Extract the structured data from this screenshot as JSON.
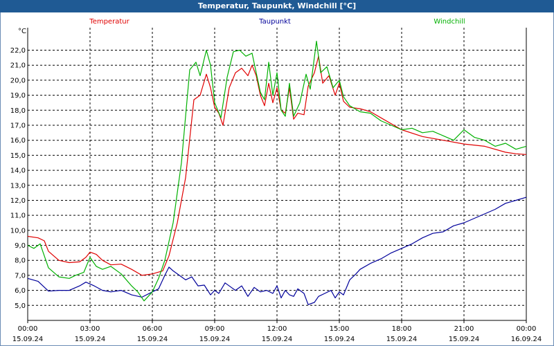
{
  "window": {
    "title": "Temperatur, Taupunkt, Windchill [°C]"
  },
  "colors": {
    "temperatur": "#e00000",
    "taupunkt": "#00009a",
    "windchill": "#00b000",
    "titlebar": "#1f5a94"
  },
  "chart_data": {
    "type": "line",
    "title": "Temperatur, Taupunkt, Windchill [°C]",
    "ylabel": "°C",
    "xlabel": "",
    "ylim": [
      4.0,
      23.5
    ],
    "xlim": [
      0,
      24
    ],
    "grid": true,
    "legend_placement": "top",
    "yticks": [
      "5,0",
      "6,0",
      "7,0",
      "8,0",
      "9,0",
      "10,0",
      "11,0",
      "12,0",
      "13,0",
      "14,0",
      "15,0",
      "16,0",
      "17,0",
      "18,0",
      "19,0",
      "20,0",
      "21,0",
      "22,0"
    ],
    "ytick_values": [
      5,
      6,
      7,
      8,
      9,
      10,
      11,
      12,
      13,
      14,
      15,
      16,
      17,
      18,
      19,
      20,
      21,
      22
    ],
    "xticks": [
      {
        "time": "00:00",
        "date": "15.09.24",
        "hour": 0
      },
      {
        "time": "03:00",
        "date": "15.09.24",
        "hour": 3
      },
      {
        "time": "06:00",
        "date": "15.09.24",
        "hour": 6
      },
      {
        "time": "09:00",
        "date": "15.09.24",
        "hour": 9
      },
      {
        "time": "12:00",
        "date": "15.09.24",
        "hour": 12
      },
      {
        "time": "15:00",
        "date": "15.09.24",
        "hour": 15
      },
      {
        "time": "18:00",
        "date": "15.09.24",
        "hour": 18
      },
      {
        "time": "21:00",
        "date": "15.09.24",
        "hour": 21
      },
      {
        "time": "00:00",
        "date": "16.09.24",
        "hour": 24
      }
    ],
    "series": [
      {
        "name": "Temperatur",
        "color": "#e00000",
        "points": [
          [
            0,
            9.6
          ],
          [
            0.5,
            9.5
          ],
          [
            0.8,
            9.3
          ],
          [
            1.0,
            8.6
          ],
          [
            1.5,
            8.0
          ],
          [
            2.0,
            7.85
          ],
          [
            2.5,
            7.9
          ],
          [
            2.8,
            8.2
          ],
          [
            3.0,
            8.55
          ],
          [
            3.3,
            8.4
          ],
          [
            3.6,
            8.0
          ],
          [
            4.0,
            7.7
          ],
          [
            4.5,
            7.75
          ],
          [
            5.0,
            7.4
          ],
          [
            5.5,
            7.0
          ],
          [
            6.0,
            7.1
          ],
          [
            6.5,
            7.3
          ],
          [
            6.8,
            8.3
          ],
          [
            7.2,
            10.5
          ],
          [
            7.6,
            13.5
          ],
          [
            8.0,
            18.7
          ],
          [
            8.3,
            19.0
          ],
          [
            8.6,
            20.4
          ],
          [
            8.8,
            19.5
          ],
          [
            9.0,
            18.2
          ],
          [
            9.2,
            17.8
          ],
          [
            9.4,
            17.0
          ],
          [
            9.7,
            19.5
          ],
          [
            10.0,
            20.5
          ],
          [
            10.3,
            20.8
          ],
          [
            10.6,
            20.3
          ],
          [
            10.8,
            21.0
          ],
          [
            11.0,
            20.3
          ],
          [
            11.2,
            19.0
          ],
          [
            11.4,
            18.3
          ],
          [
            11.6,
            19.8
          ],
          [
            11.8,
            18.5
          ],
          [
            12.0,
            19.5
          ],
          [
            12.2,
            18.0
          ],
          [
            12.4,
            17.8
          ],
          [
            12.6,
            19.5
          ],
          [
            12.8,
            17.4
          ],
          [
            13.0,
            17.8
          ],
          [
            13.3,
            17.7
          ],
          [
            13.5,
            19.6
          ],
          [
            13.8,
            20.5
          ],
          [
            14.0,
            21.6
          ],
          [
            14.2,
            19.8
          ],
          [
            14.5,
            20.3
          ],
          [
            14.8,
            19.0
          ],
          [
            15.0,
            19.8
          ],
          [
            15.2,
            18.6
          ],
          [
            15.5,
            18.2
          ],
          [
            16.0,
            18.1
          ],
          [
            16.5,
            17.9
          ],
          [
            17.0,
            17.5
          ],
          [
            18.0,
            16.7
          ],
          [
            19.0,
            16.25
          ],
          [
            20.0,
            16.0
          ],
          [
            21.0,
            15.75
          ],
          [
            22.0,
            15.6
          ],
          [
            23.0,
            15.2
          ],
          [
            23.5,
            15.1
          ],
          [
            24.0,
            15.05
          ]
        ]
      },
      {
        "name": "Taupunkt",
        "color": "#00009a",
        "points": [
          [
            0,
            6.8
          ],
          [
            0.5,
            6.6
          ],
          [
            1.0,
            5.95
          ],
          [
            1.5,
            6.0
          ],
          [
            2.0,
            6.0
          ],
          [
            2.5,
            6.3
          ],
          [
            2.8,
            6.55
          ],
          [
            3.2,
            6.3
          ],
          [
            3.6,
            6.0
          ],
          [
            4.0,
            5.9
          ],
          [
            4.5,
            6.0
          ],
          [
            5.0,
            5.7
          ],
          [
            5.5,
            5.55
          ],
          [
            6.0,
            5.9
          ],
          [
            6.3,
            6.1
          ],
          [
            6.6,
            7.0
          ],
          [
            6.8,
            7.55
          ],
          [
            7.0,
            7.3
          ],
          [
            7.3,
            7.0
          ],
          [
            7.6,
            6.7
          ],
          [
            7.9,
            6.9
          ],
          [
            8.2,
            6.3
          ],
          [
            8.5,
            6.35
          ],
          [
            8.8,
            5.7
          ],
          [
            9.0,
            6.0
          ],
          [
            9.2,
            5.8
          ],
          [
            9.5,
            6.5
          ],
          [
            9.8,
            6.2
          ],
          [
            10.0,
            6.0
          ],
          [
            10.3,
            6.3
          ],
          [
            10.6,
            5.6
          ],
          [
            10.9,
            6.2
          ],
          [
            11.2,
            5.9
          ],
          [
            11.5,
            6.0
          ],
          [
            11.8,
            5.8
          ],
          [
            12.0,
            6.3
          ],
          [
            12.2,
            5.5
          ],
          [
            12.4,
            6.0
          ],
          [
            12.6,
            5.7
          ],
          [
            12.8,
            5.6
          ],
          [
            13.0,
            6.1
          ],
          [
            13.3,
            5.8
          ],
          [
            13.5,
            5.05
          ],
          [
            13.8,
            5.2
          ],
          [
            14.0,
            5.6
          ],
          [
            14.3,
            5.8
          ],
          [
            14.6,
            6.0
          ],
          [
            14.8,
            5.5
          ],
          [
            15.0,
            5.9
          ],
          [
            15.2,
            5.7
          ],
          [
            15.5,
            6.7
          ],
          [
            15.8,
            7.1
          ],
          [
            16.0,
            7.4
          ],
          [
            16.5,
            7.8
          ],
          [
            17.0,
            8.1
          ],
          [
            17.5,
            8.5
          ],
          [
            18.0,
            8.8
          ],
          [
            18.5,
            9.1
          ],
          [
            19.0,
            9.5
          ],
          [
            19.5,
            9.8
          ],
          [
            20.0,
            9.9
          ],
          [
            20.5,
            10.3
          ],
          [
            21.0,
            10.5
          ],
          [
            21.5,
            10.8
          ],
          [
            22.0,
            11.1
          ],
          [
            22.5,
            11.4
          ],
          [
            23.0,
            11.8
          ],
          [
            23.5,
            12.0
          ],
          [
            24.0,
            12.2
          ]
        ]
      },
      {
        "name": "Windchill",
        "color": "#00b000",
        "points": [
          [
            0,
            9.0
          ],
          [
            0.3,
            8.8
          ],
          [
            0.6,
            9.1
          ],
          [
            1.0,
            7.5
          ],
          [
            1.5,
            6.9
          ],
          [
            2.0,
            6.8
          ],
          [
            2.3,
            7.0
          ],
          [
            2.7,
            7.2
          ],
          [
            3.0,
            8.2
          ],
          [
            3.3,
            7.6
          ],
          [
            3.6,
            7.4
          ],
          [
            4.0,
            7.6
          ],
          [
            4.5,
            7.1
          ],
          [
            5.0,
            6.3
          ],
          [
            5.3,
            5.9
          ],
          [
            5.6,
            5.3
          ],
          [
            6.0,
            5.9
          ],
          [
            6.3,
            6.8
          ],
          [
            6.6,
            8.0
          ],
          [
            7.0,
            10.5
          ],
          [
            7.4,
            14.5
          ],
          [
            7.8,
            20.7
          ],
          [
            8.1,
            21.2
          ],
          [
            8.3,
            20.3
          ],
          [
            8.6,
            22.0
          ],
          [
            8.8,
            21.0
          ],
          [
            9.0,
            18.5
          ],
          [
            9.3,
            17.5
          ],
          [
            9.6,
            20.2
          ],
          [
            9.9,
            21.9
          ],
          [
            10.2,
            22.0
          ],
          [
            10.5,
            21.6
          ],
          [
            10.8,
            21.8
          ],
          [
            11.0,
            20.5
          ],
          [
            11.2,
            19.2
          ],
          [
            11.4,
            18.7
          ],
          [
            11.6,
            21.2
          ],
          [
            11.8,
            19.0
          ],
          [
            12.0,
            20.5
          ],
          [
            12.2,
            18.0
          ],
          [
            12.4,
            17.6
          ],
          [
            12.6,
            19.8
          ],
          [
            12.8,
            17.6
          ],
          [
            13.1,
            18.5
          ],
          [
            13.4,
            20.4
          ],
          [
            13.6,
            19.4
          ],
          [
            13.9,
            22.6
          ],
          [
            14.1,
            20.5
          ],
          [
            14.4,
            20.9
          ],
          [
            14.7,
            19.5
          ],
          [
            15.0,
            20.0
          ],
          [
            15.2,
            18.9
          ],
          [
            15.5,
            18.3
          ],
          [
            16.0,
            17.9
          ],
          [
            16.5,
            17.8
          ],
          [
            17.0,
            17.3
          ],
          [
            17.5,
            17.0
          ],
          [
            18.0,
            16.7
          ],
          [
            18.5,
            16.8
          ],
          [
            19.0,
            16.5
          ],
          [
            19.5,
            16.6
          ],
          [
            20.0,
            16.3
          ],
          [
            20.5,
            16.0
          ],
          [
            21.0,
            16.7
          ],
          [
            21.5,
            16.2
          ],
          [
            22.0,
            16.0
          ],
          [
            22.5,
            15.6
          ],
          [
            23.0,
            15.8
          ],
          [
            23.5,
            15.4
          ],
          [
            24.0,
            15.6
          ]
        ]
      }
    ]
  }
}
